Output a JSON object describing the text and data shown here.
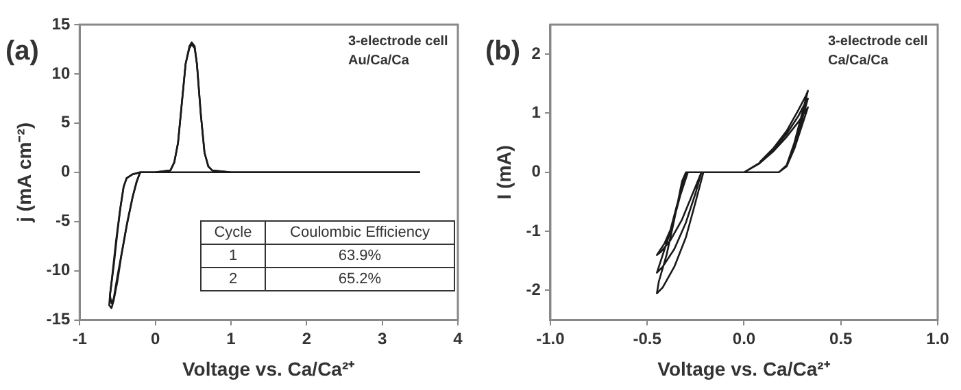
{
  "chart_data": [
    {
      "type": "line",
      "xlabel": "Voltage vs. Ca/Ca²⁺",
      "ylabel": "j (mA cm⁻²)",
      "xlim": [
        -1,
        4
      ],
      "xticks": [
        -1,
        0,
        1,
        2,
        3,
        4
      ],
      "ylim": [
        -15,
        15
      ],
      "yticks": [
        -15,
        -10,
        -5,
        0,
        5,
        10,
        15
      ],
      "grid": false,
      "legend": false,
      "marker": "none",
      "line_style": "solid",
      "annotations": [
        "(a)",
        "3-electrode cell",
        "Au/Ca/Ca",
        "Cycle",
        "Coulombic Efficiency",
        "1",
        "63.9%",
        "2",
        "65.2%"
      ],
      "series": [
        {
          "color": "#1a1a1a",
          "x": [
            0,
            -0.2,
            -0.3,
            -0.38,
            -0.42,
            -0.46,
            -0.5,
            -0.55,
            -0.6,
            -0.61,
            -0.58,
            -0.55,
            -0.5,
            -0.45,
            -0.38,
            -0.3,
            -0.25,
            -0.2,
            0,
            0.2,
            0.25,
            0.3,
            0.35,
            0.4,
            0.45,
            0.48,
            0.52,
            0.55,
            0.6,
            0.65,
            0.7,
            0.75,
            0.85,
            1,
            2,
            3.5
          ],
          "values": [
            0,
            0,
            -0.2,
            -0.6,
            -1.5,
            -3.5,
            -6,
            -9.5,
            -12.5,
            -13.5,
            -13.8,
            -13,
            -11,
            -8.5,
            -5.5,
            -2.5,
            -1,
            0,
            0,
            0.2,
            1,
            3,
            7,
            11,
            12.8,
            13.2,
            12.8,
            11,
            6,
            2,
            0.6,
            0.2,
            0.1,
            0,
            0,
            0
          ]
        },
        {
          "color": "#1a1a1a",
          "x": [
            3.5,
            1,
            0,
            -0.2,
            -0.3,
            -0.38,
            -0.42,
            -0.47,
            -0.52,
            -0.57,
            -0.6,
            -0.58,
            -0.55,
            -0.5,
            -0.44,
            -0.37,
            -0.3,
            -0.24,
            -0.2,
            0,
            0.2,
            0.25,
            0.3,
            0.35,
            0.4,
            0.45,
            0.48,
            0.52,
            0.55,
            0.6,
            0.65,
            0.7,
            0.75,
            1
          ],
          "values": [
            0,
            0,
            0,
            0,
            -0.2,
            -0.6,
            -1.5,
            -4,
            -7,
            -10.5,
            -12.5,
            -13.3,
            -12.8,
            -10.5,
            -8,
            -5,
            -2.5,
            -0.8,
            0,
            0,
            0.2,
            1,
            3,
            7,
            11,
            12.6,
            13,
            12.6,
            11,
            6,
            2,
            0.6,
            0.2,
            0
          ]
        }
      ]
    },
    {
      "type": "line",
      "xlabel": "Voltage vs. Ca/Ca²⁺",
      "ylabel": "I (mA)",
      "xlim": [
        -1,
        1
      ],
      "xticks": [
        {
          "value": -1,
          "label": "-1.0"
        },
        {
          "value": -0.5,
          "label": "-0.5"
        },
        {
          "value": 0,
          "label": "0.0"
        },
        {
          "value": 0.5,
          "label": "0.5"
        },
        {
          "value": 1,
          "label": "1.0"
        }
      ],
      "ylim": [
        -2.5,
        2.5
      ],
      "yticks": [
        -2,
        -1,
        0,
        1,
        2
      ],
      "grid": false,
      "legend": false,
      "marker": "none",
      "line_style": "solid",
      "annotations": [
        "(b)",
        "3-electrode cell",
        "Ca/Ca/Ca"
      ],
      "series": [
        {
          "color": "#1a1a1a",
          "x": [
            0,
            -0.2,
            -0.29,
            -0.33,
            -0.37,
            -0.41,
            -0.45,
            -0.43,
            -0.38,
            -0.32,
            -0.27,
            -0.22,
            -0.15,
            0,
            0.18,
            0.22,
            0.26,
            0.3,
            0.33,
            0.32,
            0.28,
            0.22,
            0.15,
            0.08,
            0,
            -0.2,
            -0.3,
            -0.35,
            -0.39,
            -0.43,
            -0.45,
            -0.42,
            -0.36,
            -0.3,
            -0.25,
            -0.22,
            0,
            0.18,
            0.22,
            0.26,
            0.3,
            0.33,
            0.32,
            0.28,
            0.22,
            0.15,
            0.08,
            0,
            -0.2,
            -0.3,
            -0.32,
            -0.36,
            -0.4,
            -0.44,
            -0.45,
            -0.42,
            -0.36,
            -0.3,
            -0.25,
            -0.21,
            0,
            0.18,
            0.22,
            0.26,
            0.3,
            0.33,
            0.32,
            0.28,
            0.22,
            0.15,
            0.08
          ],
          "values": [
            0,
            0,
            0,
            -0.4,
            -0.9,
            -1.2,
            -1.4,
            -1.35,
            -1.15,
            -0.8,
            -0.4,
            0,
            0,
            0,
            0,
            0.1,
            0.4,
            0.8,
            1.1,
            1.05,
            0.85,
            0.6,
            0.35,
            0.15,
            0,
            0,
            0,
            -0.6,
            -1.1,
            -1.5,
            -1.7,
            -1.6,
            -1.3,
            -0.85,
            -0.35,
            0,
            0,
            0,
            0.1,
            0.45,
            0.9,
            1.25,
            1.2,
            0.95,
            0.65,
            0.38,
            0.16,
            0,
            0,
            0,
            -0.15,
            -0.8,
            -1.4,
            -1.85,
            -2.05,
            -1.95,
            -1.6,
            -1.1,
            -0.5,
            0,
            0,
            0,
            0.12,
            0.5,
            1,
            1.38,
            1.3,
            1.05,
            0.7,
            0.4,
            0.17
          ]
        }
      ]
    }
  ]
}
